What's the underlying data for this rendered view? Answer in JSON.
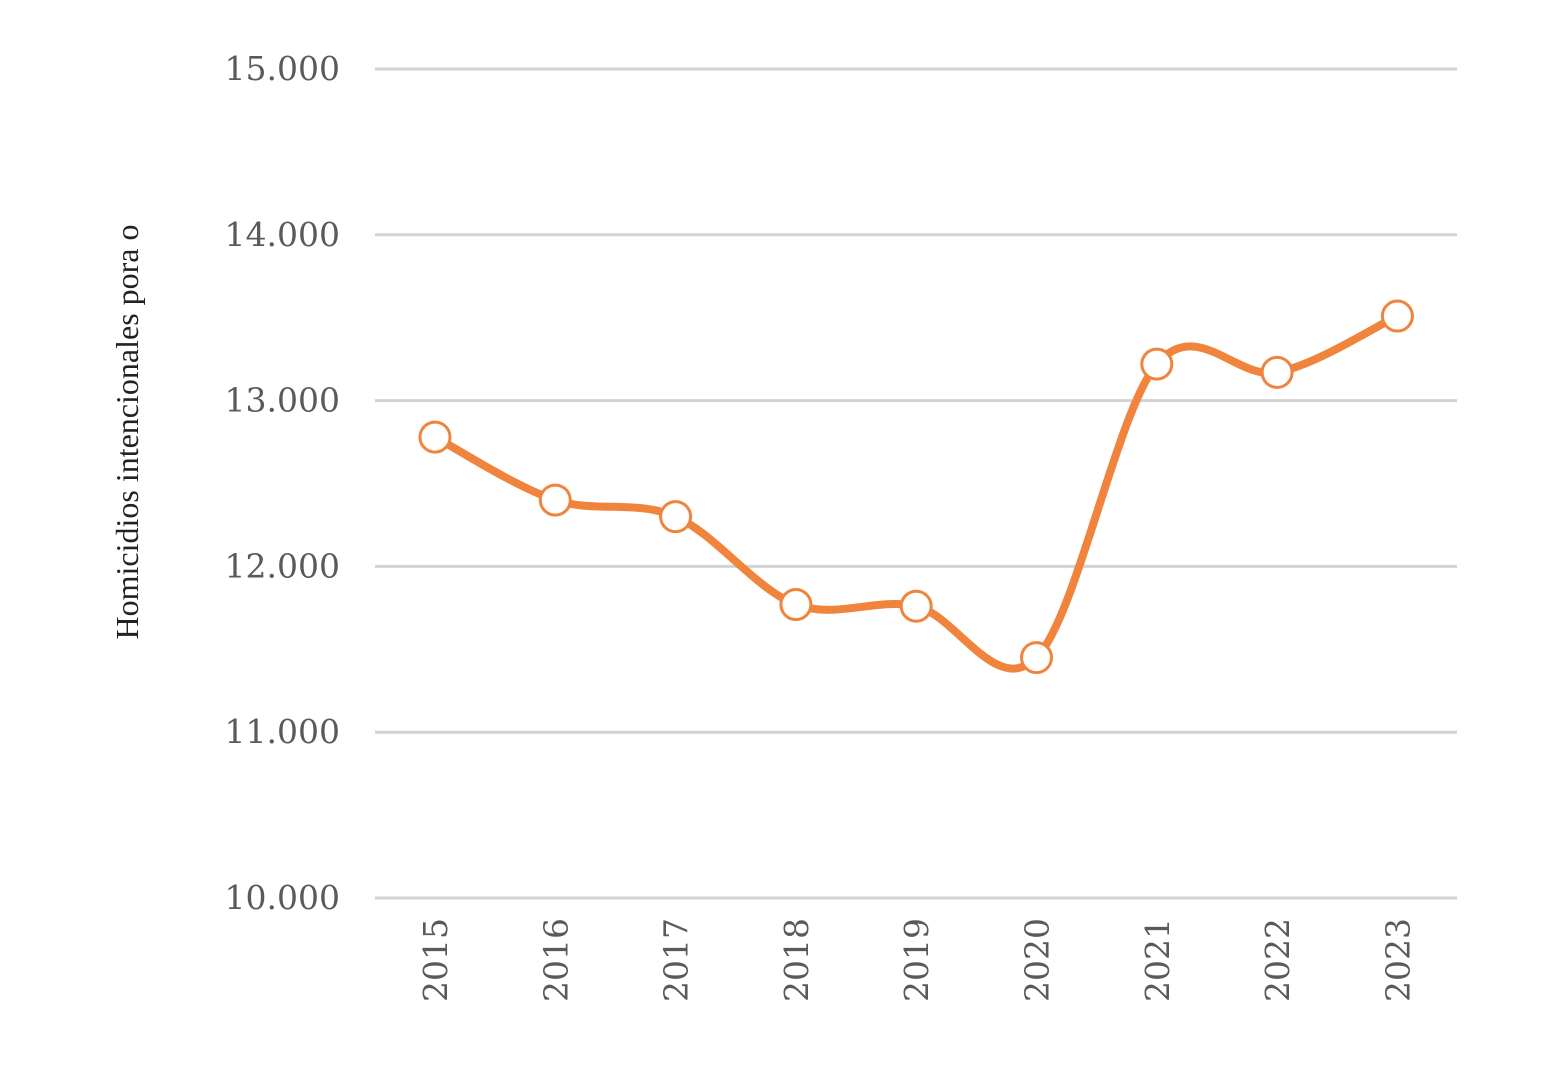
{
  "chart_data": {
    "type": "line",
    "title": "",
    "xlabel": "",
    "ylabel": "Homicidios intencionales pora o",
    "categories": [
      "2015",
      "2016",
      "2017",
      "2018",
      "2019",
      "2020",
      "2021",
      "2022",
      "2023"
    ],
    "series": [
      {
        "values": [
          12780,
          12400,
          12300,
          11770,
          11760,
          11450,
          13220,
          13170,
          13510
        ],
        "color": "#f0843c",
        "smooth": true,
        "markers": "hollow-circle"
      }
    ],
    "ylim": [
      10000,
      15000
    ],
    "yticks": [
      10000,
      11000,
      12000,
      13000,
      14000,
      15000
    ],
    "ytick_labels": [
      "10.000",
      "11.000",
      "12.000",
      "13.000",
      "14.000",
      "15.000"
    ],
    "grid": "horizontal",
    "legend": "none"
  }
}
